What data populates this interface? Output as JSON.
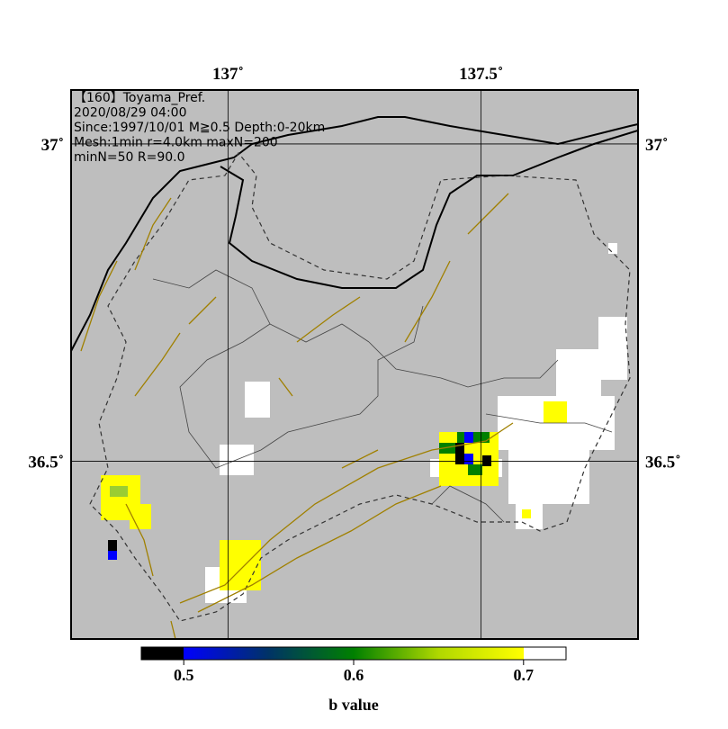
{
  "map": {
    "header": [
      "【160】Toyama_Pref.",
      "2020/08/29 04:00",
      "Since:1997/10/01 M≧0.5 Depth:0-20km",
      "Mesh:1min r=4.0km maxN=200",
      "minN=50 R=90.0"
    ],
    "xlim": [
      136.69,
      137.81
    ],
    "xticks": [
      {
        "value": 137,
        "label": "137˚"
      },
      {
        "value": 137.5,
        "label": "137.5˚"
      }
    ],
    "ylim": [
      36.22,
      37.085
    ],
    "yticks": [
      {
        "value": 37,
        "label": "37˚"
      },
      {
        "value": 36.5,
        "label": "36.5˚"
      }
    ],
    "colorbar": {
      "label": "b value",
      "lim": [
        0.475,
        0.725
      ],
      "ticks": [
        0.5,
        0.6,
        0.7
      ]
    }
  }
}
